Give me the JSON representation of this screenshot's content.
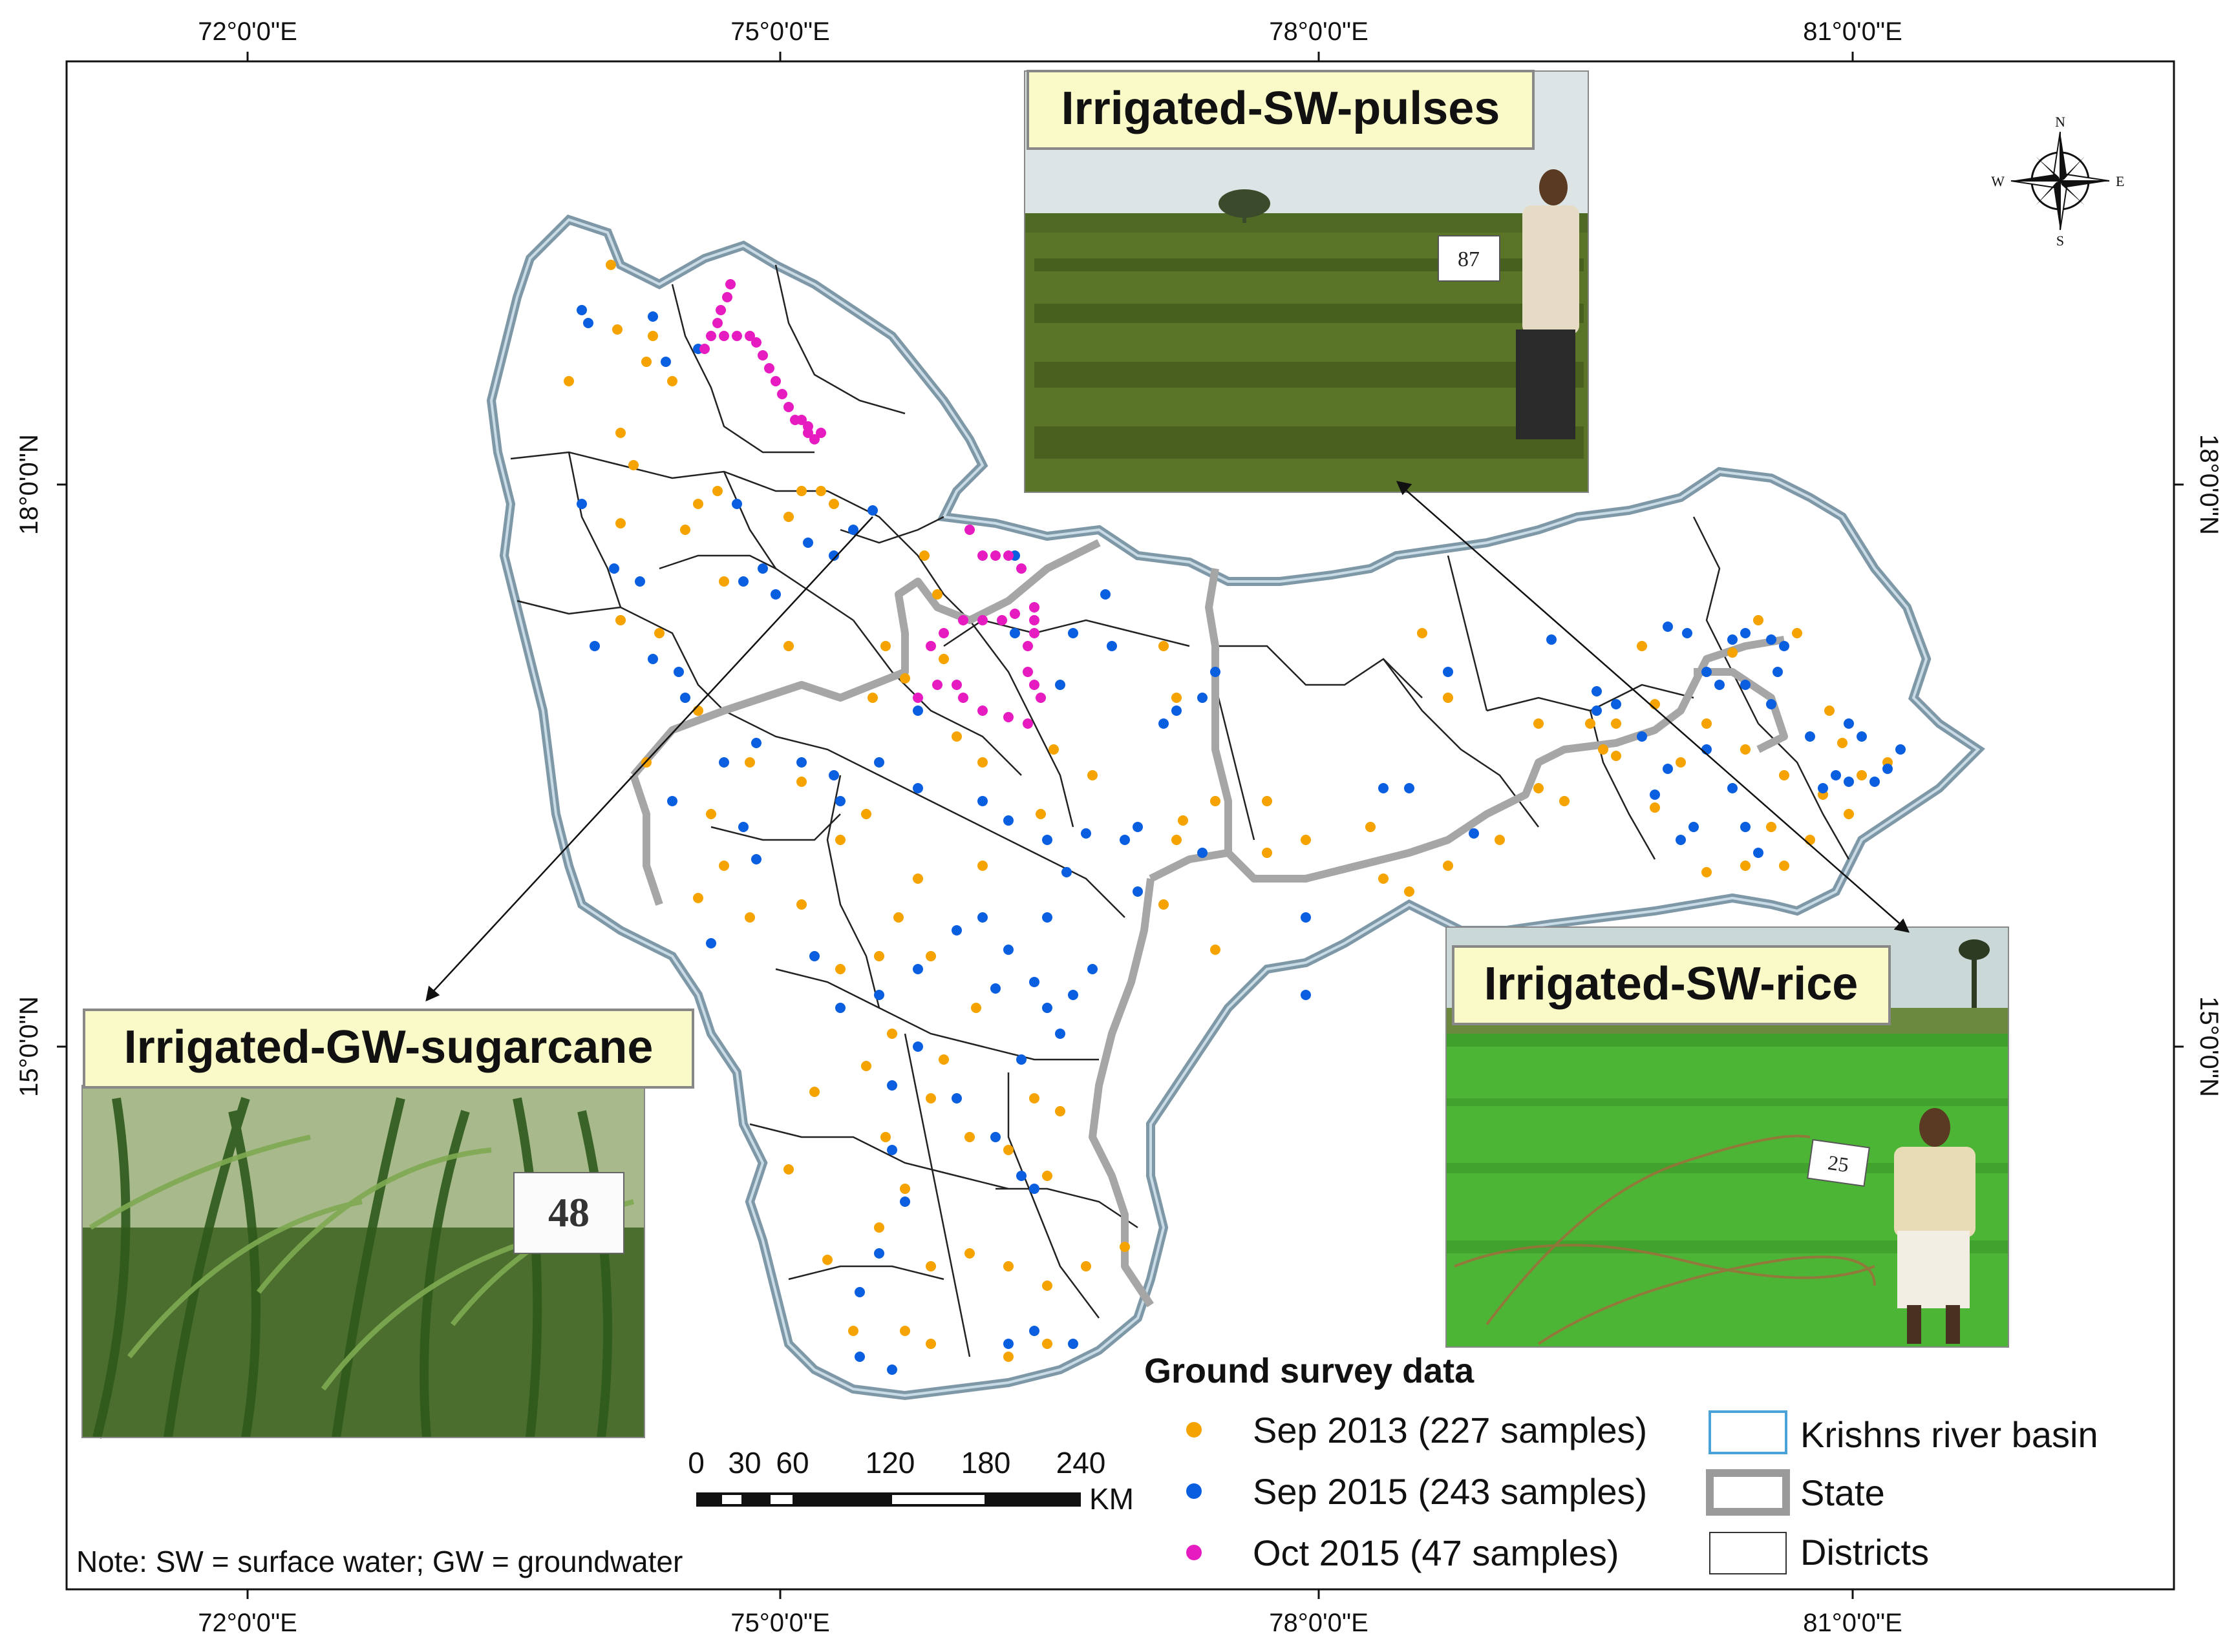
{
  "map": {
    "lon_ticks": [
      "72°0'0\"E",
      "75°0'0\"E",
      "78°0'0\"E",
      "81°0'0\"E"
    ],
    "lat_ticks": [
      "18°0'0\"N",
      "15°0'0\"N"
    ],
    "note": "Note: SW = surface water; GW = groundwater",
    "compass": {
      "n": "N",
      "s": "S",
      "e": "E",
      "w": "W"
    }
  },
  "photos": [
    {
      "label": "Irrigated-SW-pulses",
      "sample_no": "87",
      "scene": "pulses-field"
    },
    {
      "label": "Irrigated-SW-rice",
      "sample_no": "25",
      "scene": "rice-field"
    },
    {
      "label": "Irrigated-GW-sugarcane",
      "sample_no": "48",
      "scene": "sugarcane-field"
    }
  ],
  "legend": {
    "title": "Ground survey data",
    "samples": [
      {
        "label": "Sep 2013 (227 samples)",
        "color": "#f5a300"
      },
      {
        "label": "Sep 2015 (243 samples)",
        "color": "#0a5ee0"
      },
      {
        "label": "Oct 2015 (47 samples)",
        "color": "#e61cc0"
      }
    ],
    "boundaries": [
      {
        "label": "Krishns river basin",
        "color": "#4aa3d8"
      },
      {
        "label": "State",
        "color": "#9a9a9a"
      },
      {
        "label": "Districts",
        "color": "#333333"
      }
    ]
  },
  "scale_bar": {
    "labels": [
      "0",
      "30",
      "60",
      "120",
      "180",
      "240"
    ],
    "unit": "KM"
  },
  "colors": {
    "basin_outline": "#7f98a8",
    "state_line": "#a6a6a6",
    "district_line": "#222222",
    "label_box": "#fafac8"
  }
}
